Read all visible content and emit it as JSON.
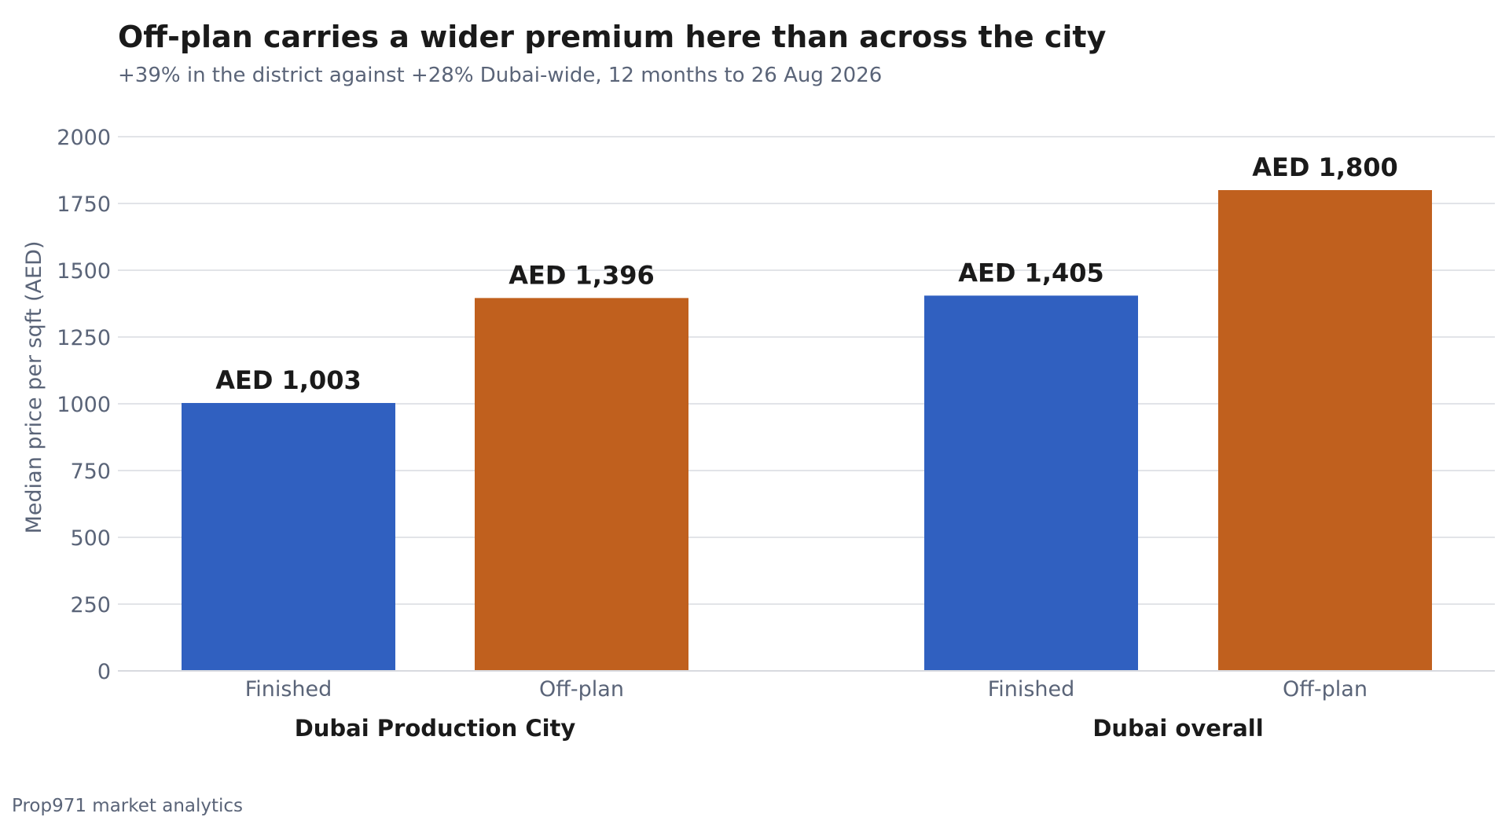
{
  "chart_data": {
    "type": "bar",
    "title": "Off-plan carries a wider premium here than across the city",
    "subtitle": "+39% in the district against +28% Dubai-wide, 12 months to 26 Aug 2026",
    "ylabel": "Median price per sqft (AED)",
    "ylim": [
      0,
      2000
    ],
    "yticks": [
      0,
      250,
      500,
      750,
      1000,
      1250,
      1500,
      1750,
      2000
    ],
    "grid": true,
    "groups": [
      {
        "name": "Dubai Production City",
        "bars": [
          {
            "category": "Finished",
            "value": 1003,
            "label": "AED 1,003",
            "color": "#3060c0"
          },
          {
            "category": "Off-plan",
            "value": 1396,
            "label": "AED 1,396",
            "color": "#c0601e"
          }
        ]
      },
      {
        "name": "Dubai overall",
        "bars": [
          {
            "category": "Finished",
            "value": 1405,
            "label": "AED 1,405",
            "color": "#3060c0"
          },
          {
            "category": "Off-plan",
            "value": 1800,
            "label": "AED 1,800",
            "color": "#c0601e"
          }
        ]
      }
    ],
    "source": "Prop971 market analytics"
  }
}
